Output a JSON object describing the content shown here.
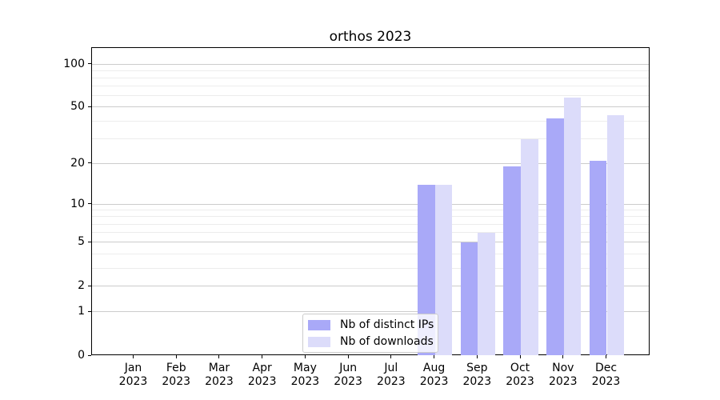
{
  "chart_data": {
    "type": "bar",
    "title": "orthos 2023",
    "categories": [
      "Jan",
      "Feb",
      "Mar",
      "Apr",
      "May",
      "Jun",
      "Jul",
      "Aug",
      "Sep",
      "Oct",
      "Nov",
      "Dec"
    ],
    "year": "2023",
    "series": [
      {
        "name": "Nb of distinct IPs",
        "color": "#a9a9f8",
        "values": [
          0,
          0,
          0,
          0,
          0,
          0,
          0,
          14,
          5,
          19,
          42,
          21
        ]
      },
      {
        "name": "Nb of downloads",
        "color": "#dcdcfa",
        "values": [
          0,
          0,
          0,
          0,
          0,
          0,
          0,
          14,
          6,
          30,
          59,
          44
        ]
      }
    ],
    "yscale": "log(1+x)",
    "ylim": [
      0,
      130
    ],
    "yticks": [
      0,
      1,
      2,
      5,
      10,
      20,
      50,
      100
    ],
    "ytick_labels": [
      "0",
      "1",
      "2",
      "5",
      "10",
      "20",
      "50",
      "100"
    ],
    "minor_yticks": [
      3,
      4,
      6,
      7,
      8,
      9,
      30,
      40,
      60,
      70,
      80,
      90
    ],
    "grid": "on",
    "legend_position": "lower center"
  },
  "colors": {
    "ips_bar": "#a9a9f8",
    "downloads_bar": "#dcdcfa",
    "grid_major": "#cccccc",
    "grid_minor": "#ececec",
    "spine": "#000000",
    "background": "#ffffff"
  }
}
